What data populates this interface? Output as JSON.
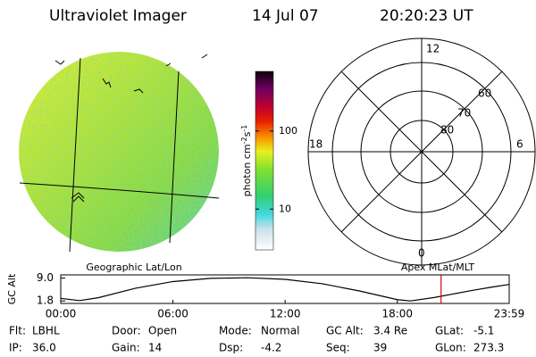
{
  "header": {
    "title": "Ultraviolet Imager",
    "date": "14 Jul 07",
    "time": "20:20:23 UT"
  },
  "left_panel": {
    "label": "Geographic Lat/Lon"
  },
  "right_panel": {
    "label": "Apex MLat/MLT",
    "mlt_labels": {
      "top": "12",
      "left": "18",
      "right": "6",
      "bottom": "0"
    },
    "lat_labels": [
      "80",
      "70",
      "60"
    ]
  },
  "colorbar": {
    "label": "photon cm",
    "exp1": "-2",
    "unit2": "s",
    "exp2": "-1",
    "scale": "log",
    "lim": [
      3,
      580
    ],
    "ticks": [
      10,
      100
    ]
  },
  "chart_data": {
    "type": "line",
    "ylabel": "GC Alt",
    "x": [
      0,
      1,
      2,
      4,
      6,
      8,
      10,
      12,
      14,
      16,
      18,
      18.7,
      20,
      21,
      22,
      23,
      23.983
    ],
    "series": [
      {
        "color": "#000000",
        "values": [
          2.6,
          1.9,
          2.8,
          5.8,
          7.9,
          8.9,
          9.1,
          8.6,
          7.2,
          4.9,
          2.2,
          1.8,
          2.9,
          4.0,
          5.1,
          6.1,
          7.0
        ]
      }
    ],
    "xlim": [
      0,
      23.983
    ],
    "xticks": [
      {
        "value": 0,
        "label": "00:00"
      },
      {
        "value": 6,
        "label": "06:00"
      },
      {
        "value": 12,
        "label": "12:00"
      },
      {
        "value": 18,
        "label": "18:00"
      },
      {
        "value": 23.983,
        "label": "23:59"
      }
    ],
    "ylim": [
      1.0,
      10.0
    ],
    "yticks": [
      {
        "value": 9.0,
        "label": "9.0"
      },
      {
        "value": 1.8,
        "label": "1.8"
      }
    ],
    "marker": {
      "x": 20.34,
      "color": "#e00000"
    }
  },
  "footer": {
    "rows": [
      [
        [
          "Flt:",
          "LBHL"
        ],
        [
          "Door:",
          "Open"
        ],
        [
          "Mode:",
          "Normal"
        ],
        [
          "GC Alt:",
          "3.4 Re"
        ],
        [
          "GLat:",
          "-5.1"
        ]
      ],
      [
        [
          "IP:",
          "36.0"
        ],
        [
          "Gain:",
          "14"
        ],
        [
          "Dsp:",
          "-4.2"
        ],
        [
          "Seq:",
          "39"
        ],
        [
          "GLon:",
          "273.3"
        ]
      ]
    ]
  }
}
